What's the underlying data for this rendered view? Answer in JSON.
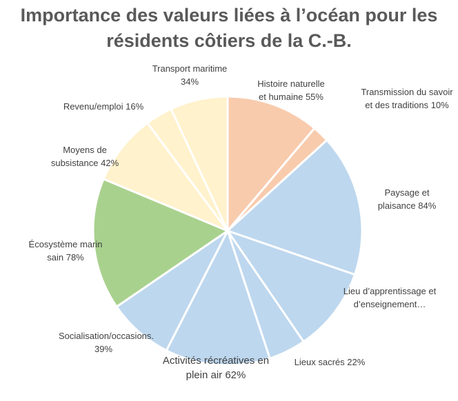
{
  "chart_data": {
    "type": "pie",
    "title": "Importance des valeurs liées à l’océan pour les résidents côtiers de la C.-B.",
    "categories": [
      "Histoire naturelle et humaine",
      "Transmission du savoir et des traditions",
      "Paysage et plaisance",
      "Lieu d’apprentissage et d’enseignement…",
      "Lieux sacrés",
      "Activités récréatives en plein air",
      "Socialisation/occasions.",
      "Écosystème marin sain",
      "Moyens de subsistance",
      "Revenu/emploi",
      "Transport maritime"
    ],
    "values": [
      55,
      10,
      84,
      50,
      22,
      62,
      39,
      78,
      42,
      16,
      34
    ],
    "value_labels": [
      "55%",
      "10%",
      "84%",
      null,
      "22%",
      "62%",
      "39%",
      "78%",
      "42%",
      "16%",
      "34%"
    ],
    "colors": [
      "#f8cbad",
      "#f8cbad",
      "#bdd7ee",
      "#bdd7ee",
      "#bdd7ee",
      "#bdd7ee",
      "#bdd7ee",
      "#a9d18e",
      "#fff2cc",
      "#fff2cc",
      "#fff2cc"
    ]
  }
}
